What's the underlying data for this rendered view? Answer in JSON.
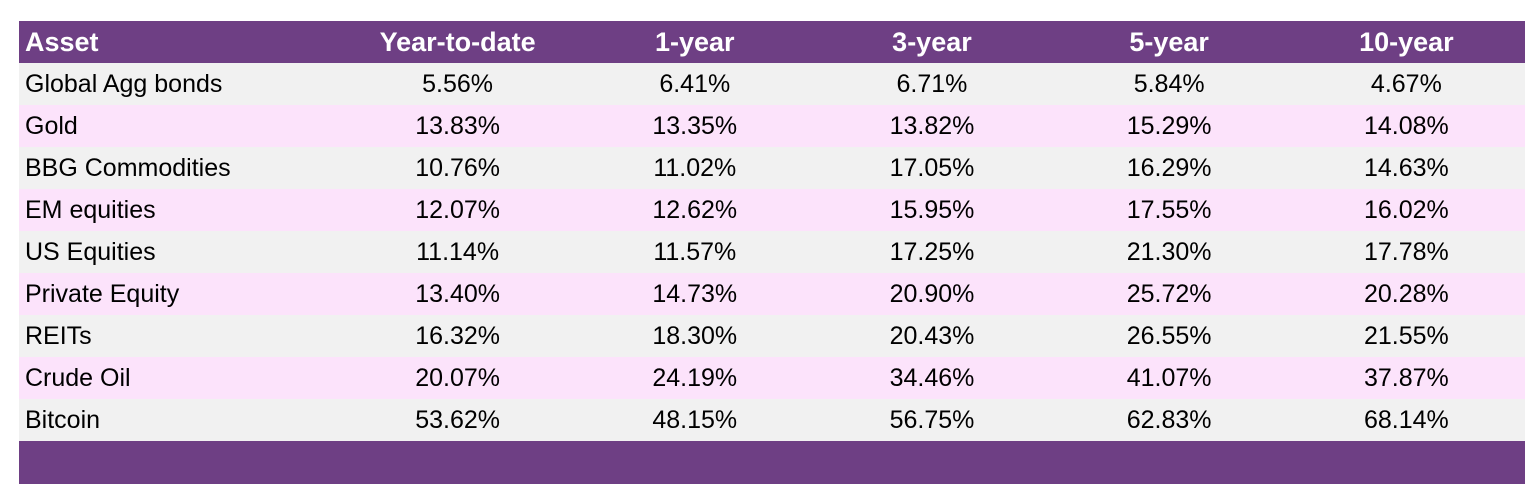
{
  "table": {
    "columns": [
      "Asset",
      "Year-to-date",
      "1-year",
      "3-year",
      "5-year",
      "10-year"
    ],
    "rows": [
      {
        "asset": "Global Agg bonds",
        "values": [
          "5.56%",
          "6.41%",
          "6.71%",
          "5.84%",
          "4.67%"
        ]
      },
      {
        "asset": "Gold",
        "values": [
          "13.83%",
          "13.35%",
          "13.82%",
          "15.29%",
          "14.08%"
        ]
      },
      {
        "asset": "BBG Commodities",
        "values": [
          "10.76%",
          "11.02%",
          "17.05%",
          "16.29%",
          "14.63%"
        ]
      },
      {
        "asset": "EM equities",
        "values": [
          "12.07%",
          "12.62%",
          "15.95%",
          "17.55%",
          "16.02%"
        ]
      },
      {
        "asset": "US Equities",
        "values": [
          "11.14%",
          "11.57%",
          "17.25%",
          "21.30%",
          "17.78%"
        ]
      },
      {
        "asset": "Private Equity",
        "values": [
          "13.40%",
          "14.73%",
          "20.90%",
          "25.72%",
          "20.28%"
        ]
      },
      {
        "asset": "REITs",
        "values": [
          "16.32%",
          "18.30%",
          "20.43%",
          "26.55%",
          "21.55%"
        ]
      },
      {
        "asset": "Crude Oil",
        "values": [
          "20.07%",
          "24.19%",
          "34.46%",
          "41.07%",
          "37.87%"
        ]
      },
      {
        "asset": "Bitcoin",
        "values": [
          "53.62%",
          "48.15%",
          "56.75%",
          "62.83%",
          "68.14%"
        ]
      }
    ]
  },
  "colors": {
    "header_bg": "#6e3f84",
    "row_odd_bg": "#f1f1f1",
    "row_even_bg": "#fce3fb"
  }
}
